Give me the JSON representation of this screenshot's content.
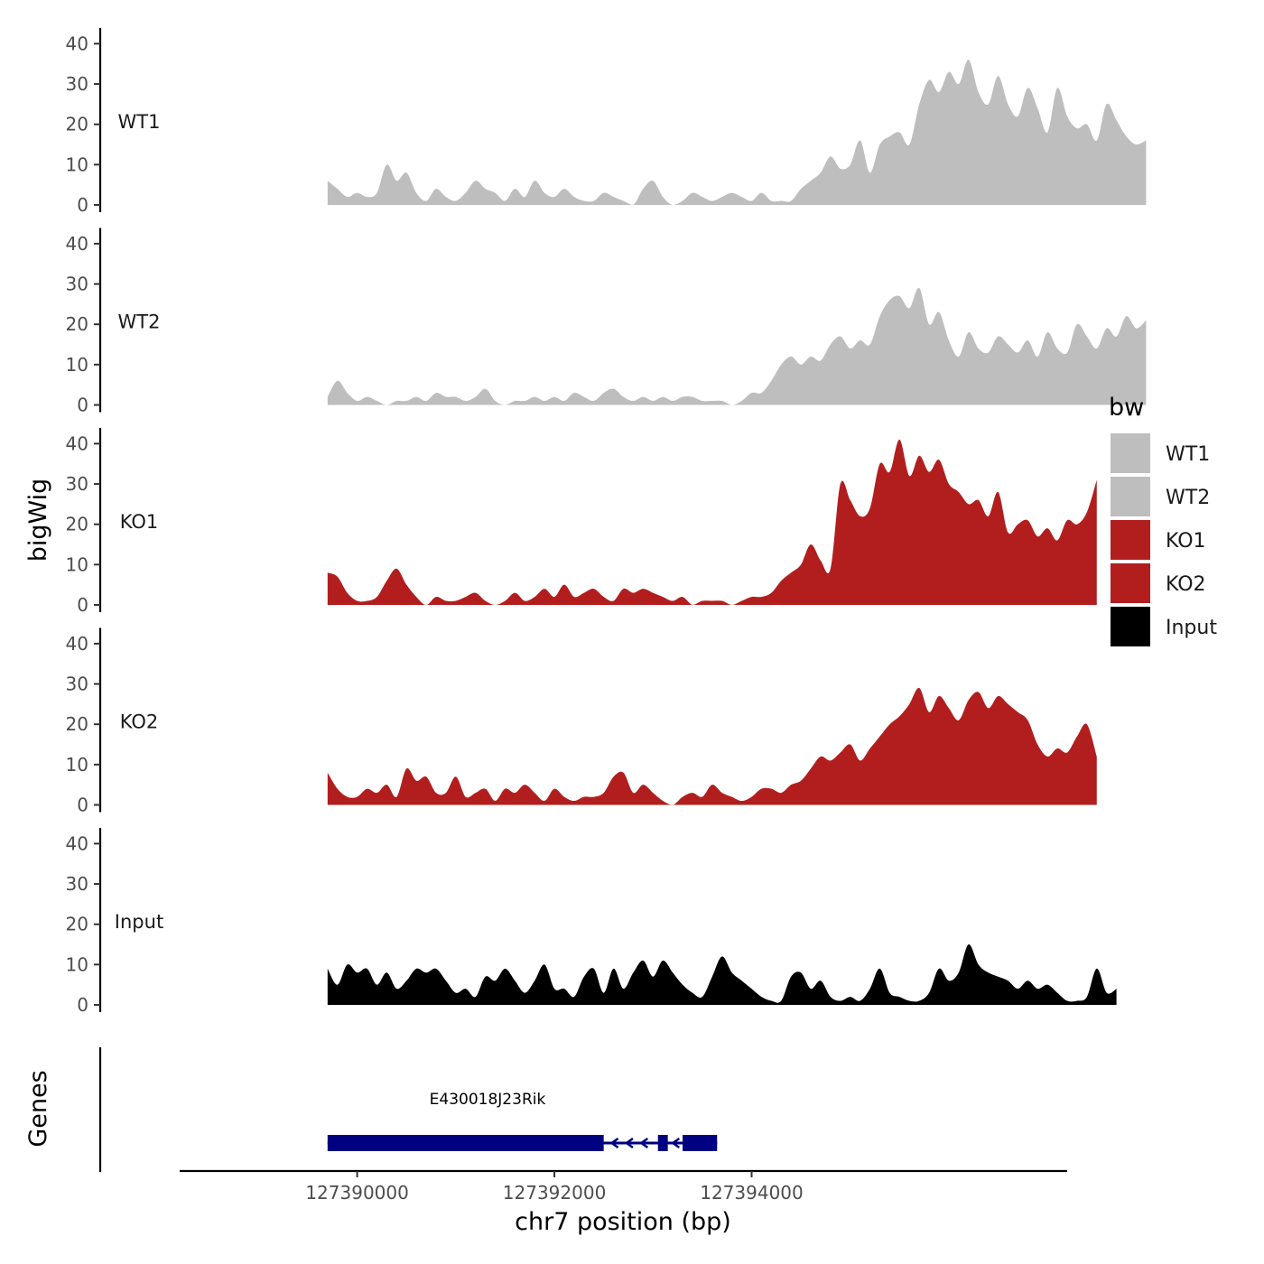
{
  "chart_data": {
    "type": "area",
    "title": "",
    "ylabel": "bigWig",
    "xlabel": "chr7 position (bp)",
    "genes_label": "Genes",
    "xlim": [
      127388200,
      127397200
    ],
    "ylim": [
      0,
      43
    ],
    "x_ticks": [
      127390000,
      127392000,
      127394000
    ],
    "x_tick_labels": [
      "127390000",
      "127392000",
      "127394000"
    ],
    "y_ticks": [
      0,
      10,
      20,
      30,
      40
    ],
    "y_tick_labels": [
      "0",
      "10",
      "20",
      "30",
      "40"
    ],
    "x_start": 127389700,
    "x_step": 100,
    "legend": {
      "title": "bw",
      "entries": [
        {
          "label": "WT1",
          "color": "#bebebe"
        },
        {
          "label": "WT2",
          "color": "#bebebe"
        },
        {
          "label": "KO1",
          "color": "#b21e1e"
        },
        {
          "label": "KO2",
          "color": "#b21e1e"
        },
        {
          "label": "Input",
          "color": "#000000"
        }
      ]
    },
    "series": [
      {
        "name": "WT1",
        "color": "#bebebe",
        "values": [
          6,
          4,
          2,
          3,
          2,
          3,
          10,
          6,
          8,
          3,
          1,
          4,
          2,
          1,
          3,
          6,
          4,
          3,
          1,
          4,
          2,
          6,
          3,
          2,
          4,
          2,
          1,
          1,
          3,
          2,
          1,
          0,
          4,
          6,
          2,
          0,
          1,
          3,
          2,
          1,
          2,
          3,
          2,
          1,
          3,
          1,
          1,
          1,
          4,
          6,
          8,
          12,
          9,
          10,
          16,
          8,
          15,
          17,
          18,
          15,
          25,
          31,
          28,
          33,
          30,
          36,
          28,
          25,
          32,
          25,
          22,
          29,
          24,
          18,
          29,
          22,
          19,
          20,
          16,
          25,
          21,
          17,
          15,
          16
        ]
      },
      {
        "name": "WT2",
        "color": "#bebebe",
        "values": [
          2,
          6,
          3,
          1,
          2,
          1,
          0,
          1,
          1,
          2,
          1,
          3,
          2,
          2,
          1,
          2,
          4,
          1,
          0,
          1,
          1,
          2,
          1,
          2,
          1,
          3,
          2,
          1,
          3,
          4,
          2,
          1,
          2,
          1,
          2,
          1,
          2,
          2,
          1,
          1,
          1,
          0,
          1,
          3,
          3,
          6,
          10,
          12,
          10,
          12,
          11,
          15,
          17,
          14,
          16,
          15,
          22,
          26,
          27,
          24,
          29,
          20,
          23,
          16,
          12,
          18,
          14,
          13,
          17,
          15,
          13,
          16,
          12,
          18,
          14,
          13,
          20,
          17,
          14,
          19,
          17,
          22,
          19,
          21
        ]
      },
      {
        "name": "KO1",
        "color": "#b21e1e",
        "values": [
          8,
          7,
          3,
          1,
          1,
          2,
          6,
          9,
          5,
          2,
          0,
          2,
          1,
          1,
          2,
          3,
          1,
          0,
          1,
          3,
          1,
          2,
          4,
          2,
          5,
          2,
          3,
          4,
          2,
          1,
          4,
          3,
          4,
          3,
          2,
          1,
          2,
          0,
          1,
          1,
          1,
          0,
          1,
          2,
          2,
          3,
          6,
          8,
          10,
          15,
          11,
          9,
          30,
          26,
          22,
          24,
          35,
          33,
          41,
          32,
          37,
          33,
          36,
          30,
          28,
          25,
          26,
          22,
          28,
          18,
          20,
          21,
          17,
          19,
          16,
          21,
          20,
          23,
          31
        ]
      },
      {
        "name": "KO2",
        "color": "#b21e1e",
        "values": [
          8,
          4,
          2,
          2,
          4,
          3,
          5,
          2,
          9,
          6,
          7,
          3,
          3,
          7,
          2,
          3,
          4,
          1,
          4,
          3,
          5,
          3,
          1,
          4,
          2,
          1,
          2,
          2,
          3,
          7,
          8,
          3,
          5,
          3,
          1,
          0,
          2,
          3,
          2,
          5,
          3,
          2,
          1,
          2,
          4,
          4,
          3,
          5,
          6,
          9,
          12,
          11,
          13,
          15,
          11,
          14,
          17,
          20,
          22,
          25,
          29,
          23,
          27,
          24,
          21,
          26,
          28,
          24,
          27,
          25,
          23,
          21,
          15,
          12,
          14,
          13,
          17,
          20,
          12
        ]
      },
      {
        "name": "Input",
        "color": "#000000",
        "values": [
          9,
          5,
          10,
          8,
          9,
          5,
          8,
          4,
          6,
          9,
          8,
          9,
          6,
          3,
          4,
          2,
          7,
          6,
          9,
          6,
          3,
          6,
          10,
          4,
          4,
          2,
          7,
          9,
          3,
          9,
          4,
          8,
          11,
          7,
          11,
          8,
          5,
          3,
          2,
          7,
          12,
          8,
          6,
          4,
          2,
          1,
          1,
          7,
          8,
          4,
          6,
          2,
          1,
          2,
          1,
          4,
          9,
          3,
          2,
          1,
          1,
          3,
          9,
          6,
          8,
          15,
          10,
          8,
          7,
          6,
          4,
          6,
          4,
          5,
          3,
          1,
          1,
          2,
          9,
          3,
          4
        ]
      }
    ],
    "gene_track": {
      "gene_name": "E430018J23Rik",
      "strand": "-",
      "color": "#000080",
      "exons": [
        [
          127389700,
          127392500
        ],
        [
          127393050,
          127393150
        ],
        [
          127393300,
          127393650
        ]
      ],
      "intron_arrow_positions": [
        127392600,
        127392750,
        127392900,
        127393220
      ]
    }
  }
}
